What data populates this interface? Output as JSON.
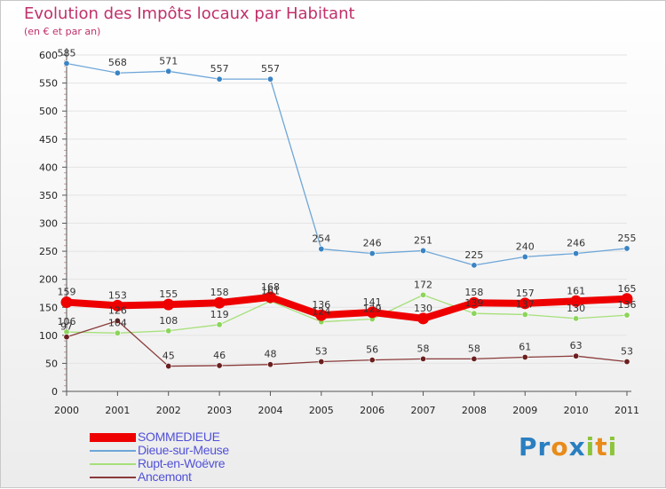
{
  "header": {
    "title": "Evolution des Impôts locaux par Habitant",
    "subtitle": "(en € et par an)"
  },
  "brand": {
    "text": "Proxiti",
    "letters": [
      {
        "ch": "P",
        "color": "#2a7fc0"
      },
      {
        "ch": "r",
        "color": "#2a7fc0"
      },
      {
        "ch": "o",
        "color": "#e88b1a"
      },
      {
        "ch": "x",
        "color": "#2a7fc0"
      },
      {
        "ch": "i",
        "color": "#8cc43c"
      },
      {
        "ch": "t",
        "color": "#e88b1a"
      },
      {
        "ch": "i",
        "color": "#8cc43c"
      }
    ]
  },
  "colors": {
    "title": "#c0306a",
    "axis": "#555555",
    "grid": "#e4e4e4",
    "legend_text": "#5151d8"
  },
  "chart_data": {
    "type": "line",
    "title": "Evolution des Impôts locaux par Habitant",
    "subtitle": "(en € et par an)",
    "xlabel": "",
    "ylabel": "",
    "ylim": [
      0,
      600
    ],
    "yticks": [
      0,
      50,
      100,
      150,
      200,
      250,
      300,
      350,
      400,
      450,
      500,
      550,
      600
    ],
    "grid": true,
    "legend_position": "bottom-left",
    "categories": [
      "2000",
      "2001",
      "2002",
      "2003",
      "2004",
      "2005",
      "2006",
      "2007",
      "2008",
      "2009",
      "2010",
      "2011"
    ],
    "series": [
      {
        "name": "SOMMEDIEUE",
        "color": "#ee0000",
        "marker": "#ee0000",
        "emphasis": true,
        "values": [
          159,
          153,
          155,
          158,
          168,
          136,
          141,
          130,
          158,
          157,
          161,
          165
        ],
        "labels": [
          "159",
          "153",
          "155",
          "158",
          "168",
          "136",
          "141",
          "130",
          "158",
          "157",
          "161",
          "165"
        ]
      },
      {
        "name": "Dieue-sur-Meuse",
        "color": "#6ea6d8",
        "marker": "#3a84c4",
        "emphasis": false,
        "values": [
          585,
          568,
          571,
          557,
          557,
          254,
          246,
          251,
          225,
          240,
          246,
          255
        ],
        "labels": [
          "585",
          "568",
          "571",
          "557",
          "557",
          "254",
          "246",
          "251",
          "225",
          "240",
          "246",
          "255"
        ]
      },
      {
        "name": "Rupt-en-Woëvre",
        "color": "#a6e07a",
        "marker": "#8cd45a",
        "emphasis": false,
        "values": [
          106,
          104,
          108,
          119,
          161,
          124,
          129,
          172,
          139,
          137,
          130,
          136
        ],
        "labels": [
          "106",
          "104",
          "108",
          "119",
          "161",
          "124",
          "129",
          "172",
          "139",
          "137",
          "130",
          "136"
        ]
      },
      {
        "name": "Ancemont",
        "color": "#8a3a3a",
        "marker": "#6b1f1f",
        "emphasis": false,
        "values": [
          97,
          126,
          45,
          46,
          48,
          53,
          56,
          58,
          58,
          61,
          63,
          53
        ],
        "labels": [
          "97",
          "126",
          "45",
          "46",
          "48",
          "53",
          "56",
          "58",
          "58",
          "61",
          "63",
          "53"
        ]
      }
    ]
  }
}
